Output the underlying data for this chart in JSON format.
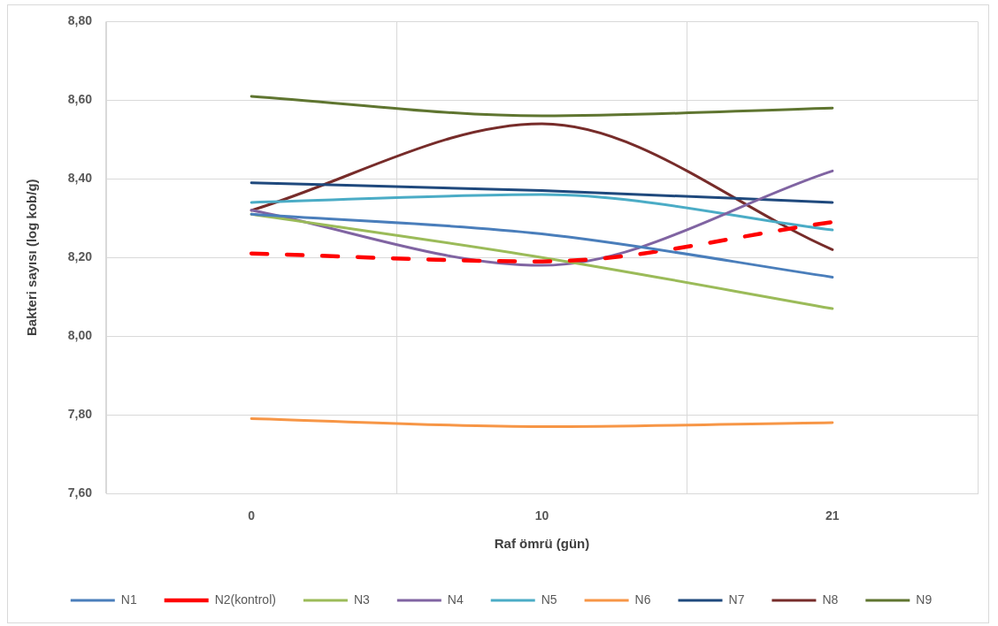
{
  "chart_data": {
    "type": "line",
    "xlabel": "Raf ömrü (gün)",
    "ylabel": "Bakteri sayısı (log kob/g)",
    "categories": [
      "0",
      "10",
      "21"
    ],
    "series": [
      {
        "name": "N1",
        "color": "#4a7ebb",
        "values": [
          8.31,
          8.26,
          8.15
        ]
      },
      {
        "name": "N2(kontrol)",
        "color": "#ff0000",
        "values": [
          8.21,
          8.19,
          8.29
        ],
        "line_style": "dashed"
      },
      {
        "name": "N3",
        "color": "#9bbb59",
        "values": [
          8.31,
          8.2,
          8.07
        ]
      },
      {
        "name": "N4",
        "color": "#8064a2",
        "values": [
          8.32,
          8.18,
          8.42
        ]
      },
      {
        "name": "N5",
        "color": "#4bacc6",
        "values": [
          8.34,
          8.36,
          8.27
        ]
      },
      {
        "name": "N6",
        "color": "#f79646",
        "values": [
          7.79,
          7.77,
          7.78
        ]
      },
      {
        "name": "N7",
        "color": "#1f497d",
        "values": [
          8.39,
          8.37,
          8.34
        ]
      },
      {
        "name": "N8",
        "color": "#772c2a",
        "values": [
          8.32,
          8.54,
          8.22
        ]
      },
      {
        "name": "N9",
        "color": "#5f7530",
        "values": [
          8.61,
          8.56,
          8.58
        ]
      }
    ],
    "ylim": [
      7.6,
      8.8
    ],
    "yticks": [
      {
        "value": 7.6,
        "label": "7,60"
      },
      {
        "value": 7.8,
        "label": "7,80"
      },
      {
        "value": 8.0,
        "label": "8,00"
      },
      {
        "value": 8.2,
        "label": "8,20"
      },
      {
        "value": 8.4,
        "label": "8,40"
      },
      {
        "value": 8.6,
        "label": "8,60"
      },
      {
        "value": 8.8,
        "label": "8,80"
      }
    ],
    "grid": true,
    "legend": "bottom",
    "marker": "none",
    "line_style": "solid"
  }
}
